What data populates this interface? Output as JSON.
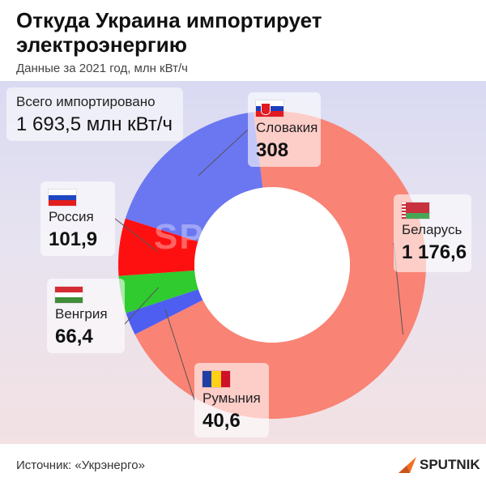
{
  "title": "Откуда Украина импортирует электроэнергию",
  "subtitle": "Данные за 2021 год, млн кВт/ч",
  "total": {
    "label": "Всего импортировано",
    "value": "1 693,5 млн кВт/ч"
  },
  "source": "Источник: «Укрэнерго»",
  "brand": "SPUTNIK",
  "watermark": "SPUTNIK",
  "colors": {
    "Беларусь": "#f98375",
    "Словакия": "#6b76f1",
    "Россия": "#ff1010",
    "Венгрия": "#2fcb2f",
    "Румыния": "#4e5ef0",
    "brand": "#f26f21"
  },
  "labels": {
    "slovakia": {
      "name": "Словакия",
      "value": "308",
      "flag": "slovakia-flag-icon"
    },
    "russia": {
      "name": "Россия",
      "value": "101,9",
      "flag": "russia-flag-icon"
    },
    "belarus": {
      "name": "Беларусь",
      "value": "1 176,6",
      "flag": "belarus-flag-icon"
    },
    "hungary": {
      "name": "Венгрия",
      "value": "66,4",
      "flag": "hungary-flag-icon"
    },
    "romania": {
      "name": "Румыния",
      "value": "40,6",
      "flag": "romania-flag-icon"
    }
  },
  "chart_data": {
    "type": "pie",
    "title": "Откуда Украина импортирует электроэнергию",
    "subtitle": "Данные за 2021 год, млн кВт/ч",
    "categories": [
      "Беларусь",
      "Румыния",
      "Венгрия",
      "Россия",
      "Словакия"
    ],
    "values": [
      1176.6,
      40.6,
      66.4,
      101.9,
      308
    ],
    "total": 1693.5,
    "donut": true,
    "legend": "none"
  }
}
